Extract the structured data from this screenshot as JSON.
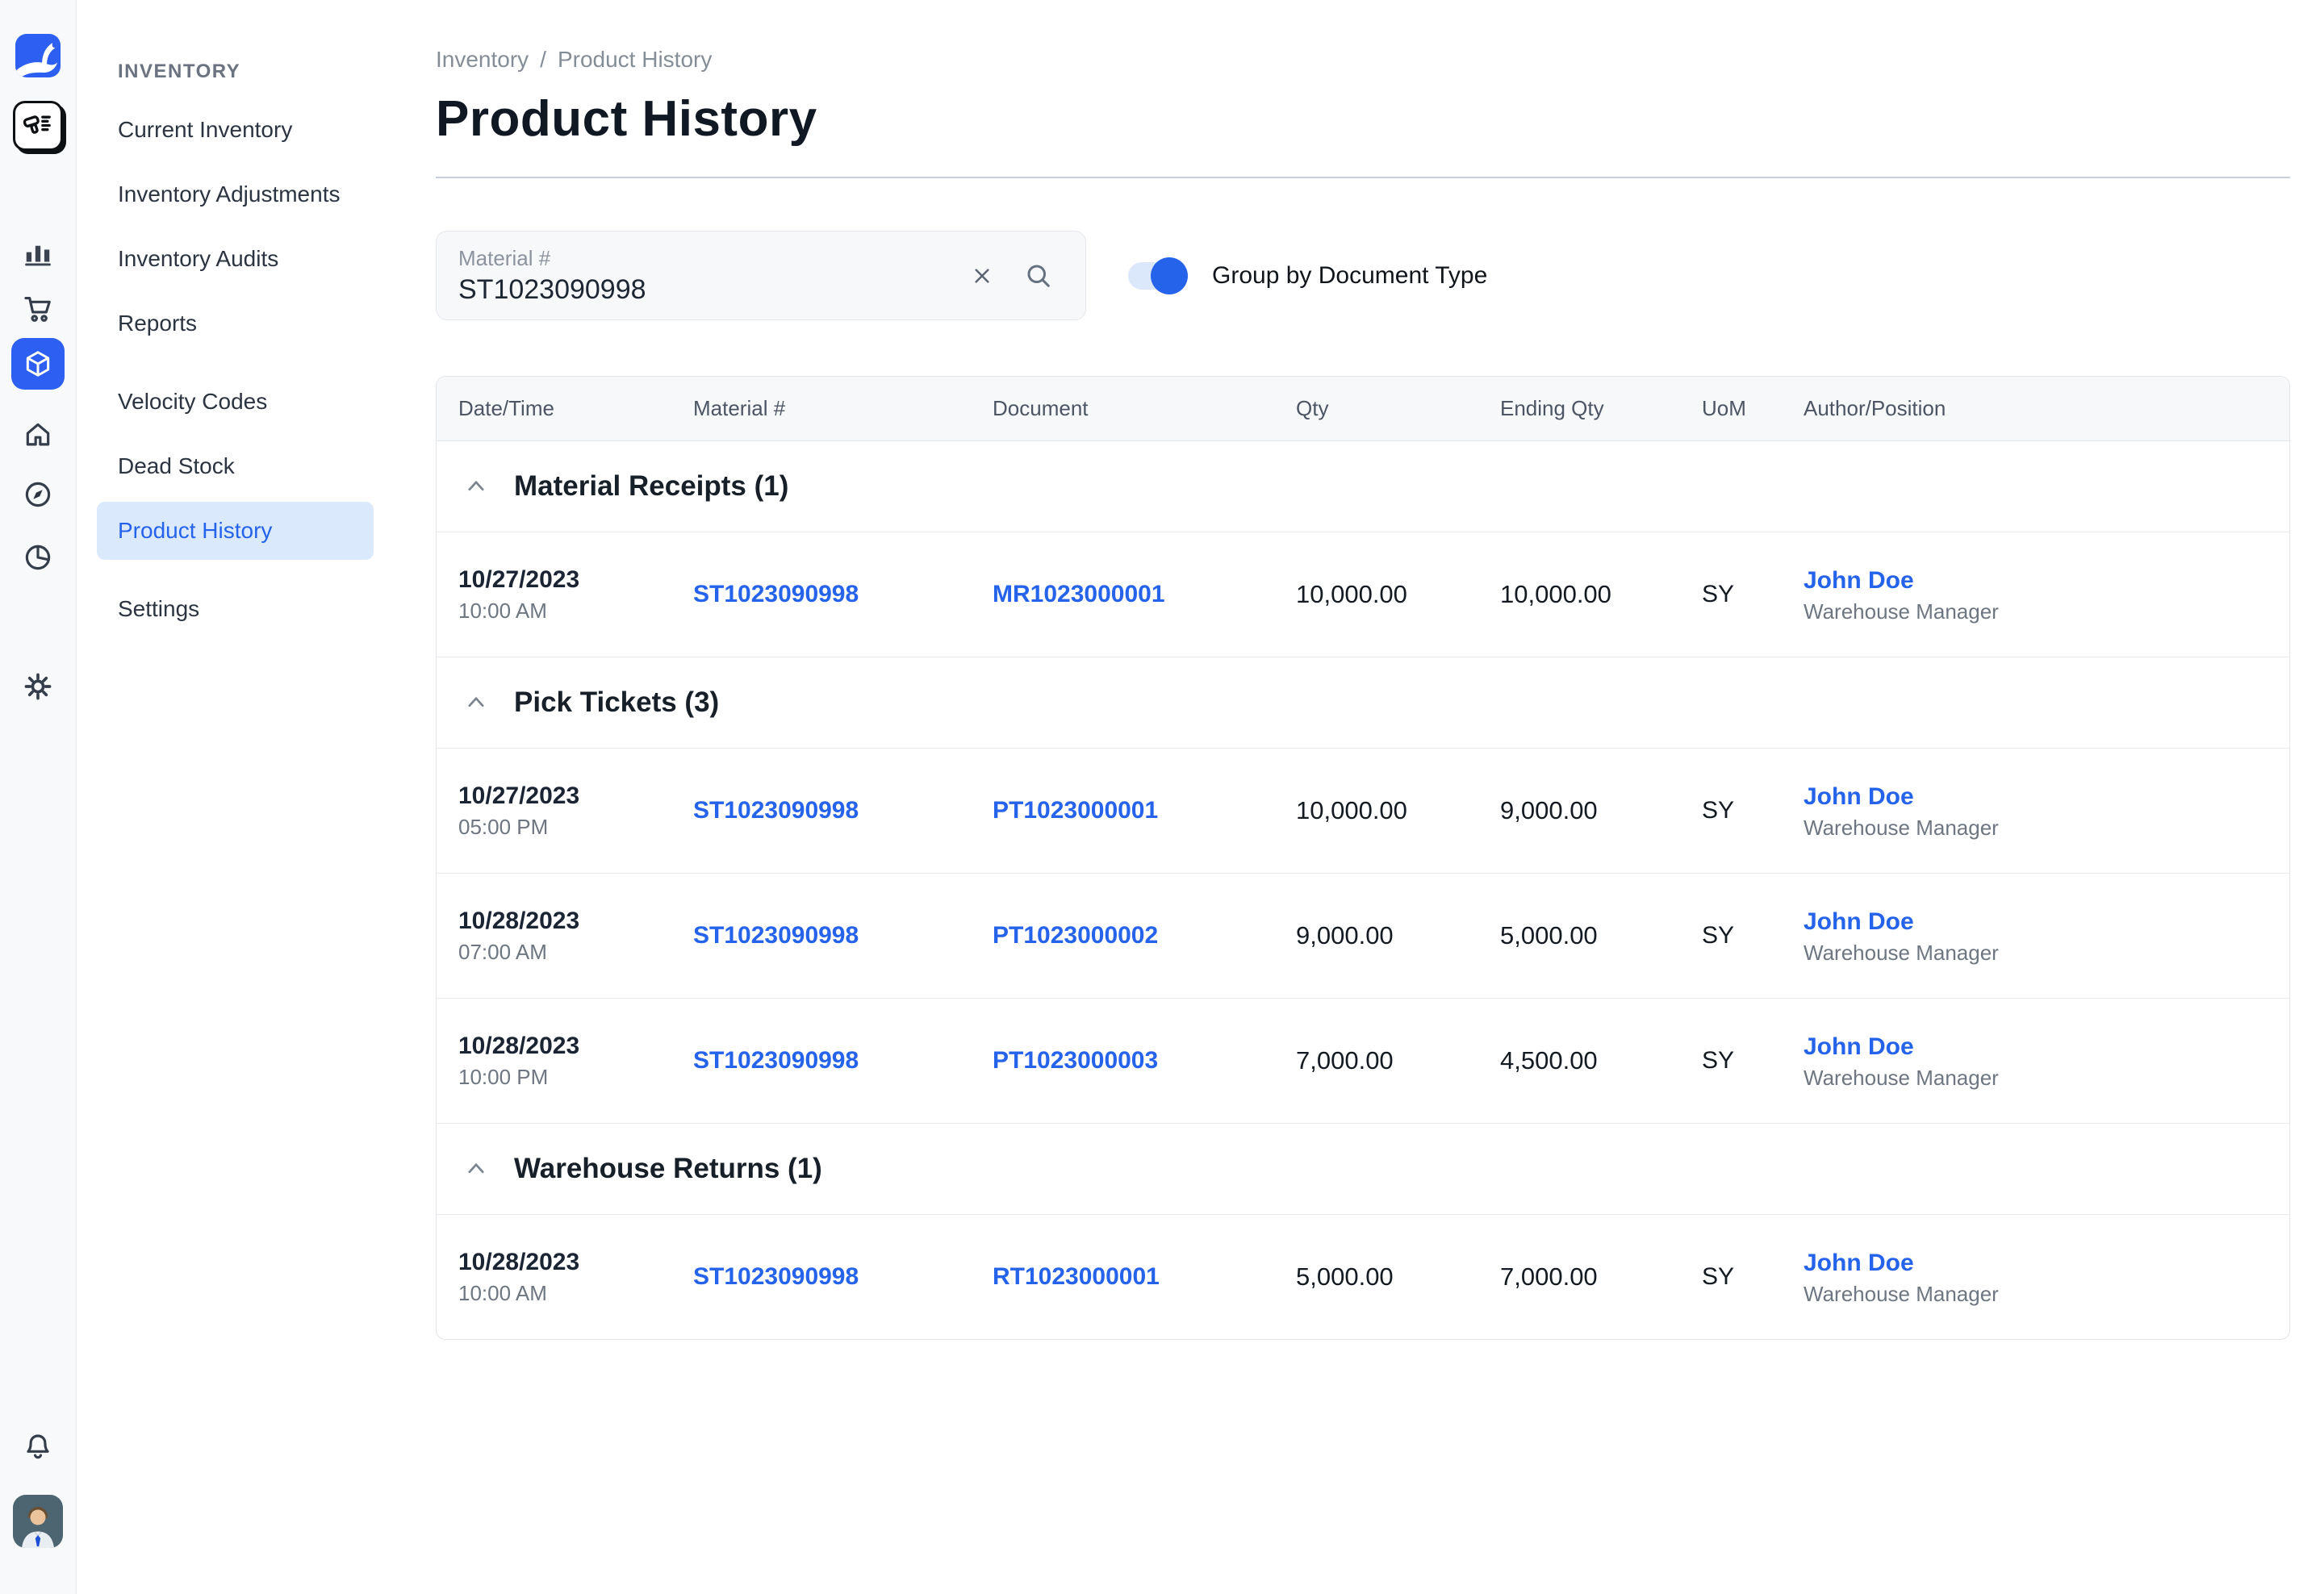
{
  "colors": {
    "accent": "#2c5ff2",
    "link": "#2563eb",
    "selected_item_bg": "#dbe9fc",
    "toggle_track": "#dbe7fb",
    "rail_bg": "#f8f9fa",
    "border": "#e2e5ea",
    "table_header_bg": "#f7f8fa",
    "text_dark": "#19212c",
    "text_gray": "#6e7681"
  },
  "rail": {
    "icons": [
      "logo-icon",
      "barcode-scanner-icon",
      "bar-chart-icon",
      "cart-icon",
      "package-icon",
      "home-icon",
      "compass-icon",
      "pie-chart-icon",
      "gear-icon",
      "bell-icon",
      "user-avatar"
    ],
    "active_icon": "package-icon"
  },
  "sidebar": {
    "section_label": "INVENTORY",
    "groups": [
      {
        "items": [
          {
            "label": "Current Inventory",
            "active": false
          },
          {
            "label": "Inventory Adjustments",
            "active": false
          },
          {
            "label": "Inventory Audits",
            "active": false
          },
          {
            "label": "Reports",
            "active": false
          }
        ]
      },
      {
        "items": [
          {
            "label": "Velocity Codes",
            "active": false
          },
          {
            "label": "Dead Stock",
            "active": false
          },
          {
            "label": "Product History",
            "active": true
          }
        ]
      },
      {
        "items": [
          {
            "label": "Settings",
            "active": false
          }
        ]
      }
    ]
  },
  "header": {
    "breadcrumb": [
      "Inventory",
      "Product History"
    ],
    "separator": "/",
    "title": "Product History"
  },
  "filters": {
    "search": {
      "label": "Material #",
      "value": "ST1023090998"
    },
    "toggle": {
      "label": "Group by Document Type",
      "on": true
    }
  },
  "table": {
    "columns": [
      "Date/Time",
      "Material #",
      "Document",
      "Qty",
      "Ending Qty",
      "UoM",
      "Author/Position"
    ],
    "groups": [
      {
        "label": "Material Receipts",
        "count": 1,
        "slug": "material-receipts",
        "rows": [
          {
            "date": "10/27/2023",
            "time": "10:00 AM",
            "material": "ST1023090998",
            "document": "MR1023000001",
            "qty": "10,000.00",
            "ending_qty": "10,000.00",
            "uom": "SY",
            "author": "John Doe",
            "position": "Warehouse Manager"
          }
        ]
      },
      {
        "label": "Pick Tickets",
        "count": 3,
        "slug": "pick-tickets",
        "rows": [
          {
            "date": "10/27/2023",
            "time": "05:00 PM",
            "material": "ST1023090998",
            "document": "PT1023000001",
            "qty": "10,000.00",
            "ending_qty": "9,000.00",
            "uom": "SY",
            "author": "John Doe",
            "position": "Warehouse Manager"
          },
          {
            "date": "10/28/2023",
            "time": "07:00 AM",
            "material": "ST1023090998",
            "document": "PT1023000002",
            "qty": "9,000.00",
            "ending_qty": "5,000.00",
            "uom": "SY",
            "author": "John Doe",
            "position": "Warehouse Manager"
          },
          {
            "date": "10/28/2023",
            "time": "10:00 PM",
            "material": "ST1023090998",
            "document": "PT1023000003",
            "qty": "7,000.00",
            "ending_qty": "4,500.00",
            "uom": "SY",
            "author": "John Doe",
            "position": "Warehouse Manager"
          }
        ]
      },
      {
        "label": "Warehouse Returns",
        "count": 1,
        "slug": "warehouse-returns",
        "rows": [
          {
            "date": "10/28/2023",
            "time": "10:00 AM",
            "material": "ST1023090998",
            "document": "RT1023000001",
            "qty": "5,000.00",
            "ending_qty": "7,000.00",
            "uom": "SY",
            "author": "John Doe",
            "position": "Warehouse Manager"
          }
        ]
      }
    ]
  }
}
